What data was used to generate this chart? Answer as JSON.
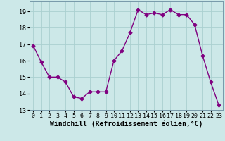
{
  "x": [
    0,
    1,
    2,
    3,
    4,
    5,
    6,
    7,
    8,
    9,
    10,
    11,
    12,
    13,
    14,
    15,
    16,
    17,
    18,
    19,
    20,
    21,
    22,
    23
  ],
  "y": [
    16.9,
    15.9,
    15.0,
    15.0,
    14.7,
    13.8,
    13.7,
    14.1,
    14.1,
    14.1,
    16.0,
    16.6,
    17.7,
    19.1,
    18.8,
    18.9,
    18.8,
    19.1,
    18.8,
    18.8,
    18.2,
    16.3,
    14.7,
    13.3
  ],
  "line_color": "#800080",
  "marker": "D",
  "markersize": 2.5,
  "linewidth": 1.0,
  "bg_color": "#cce8e8",
  "grid_color": "#aad0d0",
  "xlabel": "Windchill (Refroidissement éolien,°C)",
  "xlabel_fontsize": 7,
  "tick_fontsize": 6,
  "ylim": [
    13,
    19.6
  ],
  "yticks": [
    13,
    14,
    15,
    16,
    17,
    18,
    19
  ],
  "xlim": [
    -0.5,
    23.5
  ],
  "xticks": [
    0,
    1,
    2,
    3,
    4,
    5,
    6,
    7,
    8,
    9,
    10,
    11,
    12,
    13,
    14,
    15,
    16,
    17,
    18,
    19,
    20,
    21,
    22,
    23
  ]
}
